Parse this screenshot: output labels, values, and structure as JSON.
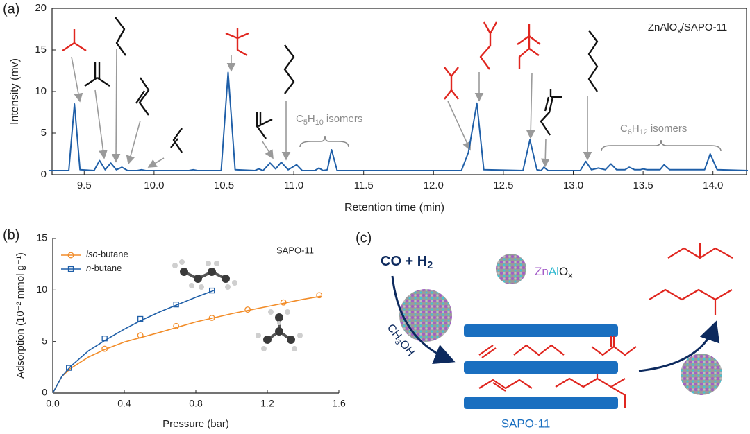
{
  "chart_data": [
    {
      "type": "line",
      "panel_label": "(a)",
      "annotation": [
        "ZnAlO",
        "x",
        "/SAPO-11"
      ],
      "group_labels": [
        [
          "C",
          "5",
          "H",
          "10",
          " isomers"
        ],
        [
          "C",
          "6",
          "H",
          "12",
          " isomers"
        ]
      ],
      "xlabel": "Retention time (min)",
      "ylabel": "Intensity (mv)",
      "xlim": [
        9.27,
        14.24
      ],
      "ylim": [
        0,
        20
      ],
      "xticks": [
        9.5,
        {
          "value": 10,
          "label": "10.0"
        },
        10.5,
        {
          "value": 11,
          "label": "11.0"
        },
        11.5,
        {
          "value": 12,
          "label": "12.0"
        },
        12.5,
        {
          "value": 13,
          "label": "13.0"
        },
        13.5,
        {
          "value": 14,
          "label": "14.0"
        }
      ],
      "yticks": [
        0,
        5,
        10,
        15,
        20
      ],
      "color": "#1f5fa8",
      "x": [
        9.25,
        9.39,
        9.43,
        9.47,
        9.57,
        9.61,
        9.65,
        9.69,
        9.73,
        9.77,
        9.81,
        9.88,
        9.91,
        9.94,
        10.25,
        10.28,
        10.31,
        10.48,
        10.53,
        10.58,
        10.72,
        10.75,
        10.78,
        10.83,
        10.87,
        10.91,
        10.96,
        11.02,
        11.06,
        11.15,
        11.18,
        11.21,
        11.24,
        11.27,
        11.31,
        12.2,
        12.25,
        12.31,
        12.36,
        12.64,
        12.69,
        12.74,
        12.77,
        12.79,
        12.82,
        13.05,
        13.09,
        13.13,
        13.18,
        13.23,
        13.27,
        13.31,
        13.37,
        13.4,
        13.44,
        13.48,
        13.5,
        13.53,
        13.62,
        13.65,
        13.69,
        13.94,
        13.98,
        14.03,
        14.25
      ],
      "values": [
        0.5,
        0.5,
        8.5,
        0.6,
        0.5,
        1.7,
        0.6,
        1.4,
        0.6,
        0.9,
        0.5,
        0.5,
        0.6,
        0.5,
        0.5,
        0.6,
        0.5,
        0.5,
        12.3,
        0.6,
        0.5,
        0.7,
        0.5,
        1.4,
        0.7,
        1.5,
        0.6,
        1.2,
        0.5,
        0.5,
        0.8,
        0.5,
        0.6,
        3.0,
        0.5,
        0.5,
        2.7,
        8.6,
        0.6,
        0.5,
        4.2,
        0.6,
        0.5,
        0.9,
        0.5,
        0.5,
        1.6,
        0.6,
        0.8,
        0.6,
        1.3,
        0.6,
        0.6,
        0.9,
        0.6,
        0.6,
        0.7,
        0.6,
        0.6,
        1.2,
        0.6,
        0.6,
        2.5,
        0.6,
        0.5
      ]
    },
    {
      "type": "scatter",
      "panel_label": "(b)",
      "annotation": "SAPO-11",
      "xlabel": "Pressure (bar)",
      "ylabel": "Adsorption (10⁻² mmol g⁻¹)",
      "xlim": [
        0,
        1.6
      ],
      "ylim": [
        0,
        15
      ],
      "xticks": [
        {
          "value": 0,
          "label": "0.0"
        },
        0.4,
        0.8,
        1.2,
        1.6
      ],
      "yticks": [
        0,
        5,
        10,
        15
      ],
      "legend": "upper left",
      "series": [
        {
          "name": "iso-butane",
          "color": "#f28c28",
          "marker": "circle",
          "x": [
            0.29,
            0.49,
            0.69,
            0.89,
            1.09,
            1.29,
            1.49
          ],
          "values": [
            4.3,
            5.6,
            6.5,
            7.3,
            8.1,
            8.8,
            9.5
          ],
          "fit": {
            "x": [
              0,
              0.05,
              0.1,
              0.2,
              0.3,
              0.4,
              0.6,
              0.8,
              1.0,
              1.2,
              1.4,
              1.5
            ],
            "values": [
              0,
              1.6,
              2.4,
              3.5,
              4.3,
              4.95,
              5.9,
              6.9,
              7.7,
              8.4,
              9.1,
              9.4
            ]
          }
        },
        {
          "name": "n-butane",
          "color": "#1f5fa8",
          "marker": "square",
          "x": [
            0.09,
            0.29,
            0.49,
            0.69,
            0.89
          ],
          "values": [
            2.45,
            5.3,
            7.2,
            8.6,
            9.95
          ],
          "fit": {
            "x": [
              0,
              0.05,
              0.1,
              0.2,
              0.3,
              0.4,
              0.5,
              0.6,
              0.7,
              0.8,
              0.9
            ],
            "values": [
              0,
              1.6,
              2.6,
              4.1,
              5.2,
              6.2,
              7.1,
              7.9,
              8.6,
              9.3,
              9.95
            ]
          }
        }
      ]
    }
  ],
  "diagram": {
    "panel_label": "(c)",
    "reactants": [
      "CO + H",
      "2"
    ],
    "catalyst": [
      "Zn",
      "Al",
      "O",
      "x"
    ],
    "intermediate": [
      "CH",
      "3",
      "OH"
    ],
    "zeolite": "SAPO-11"
  }
}
